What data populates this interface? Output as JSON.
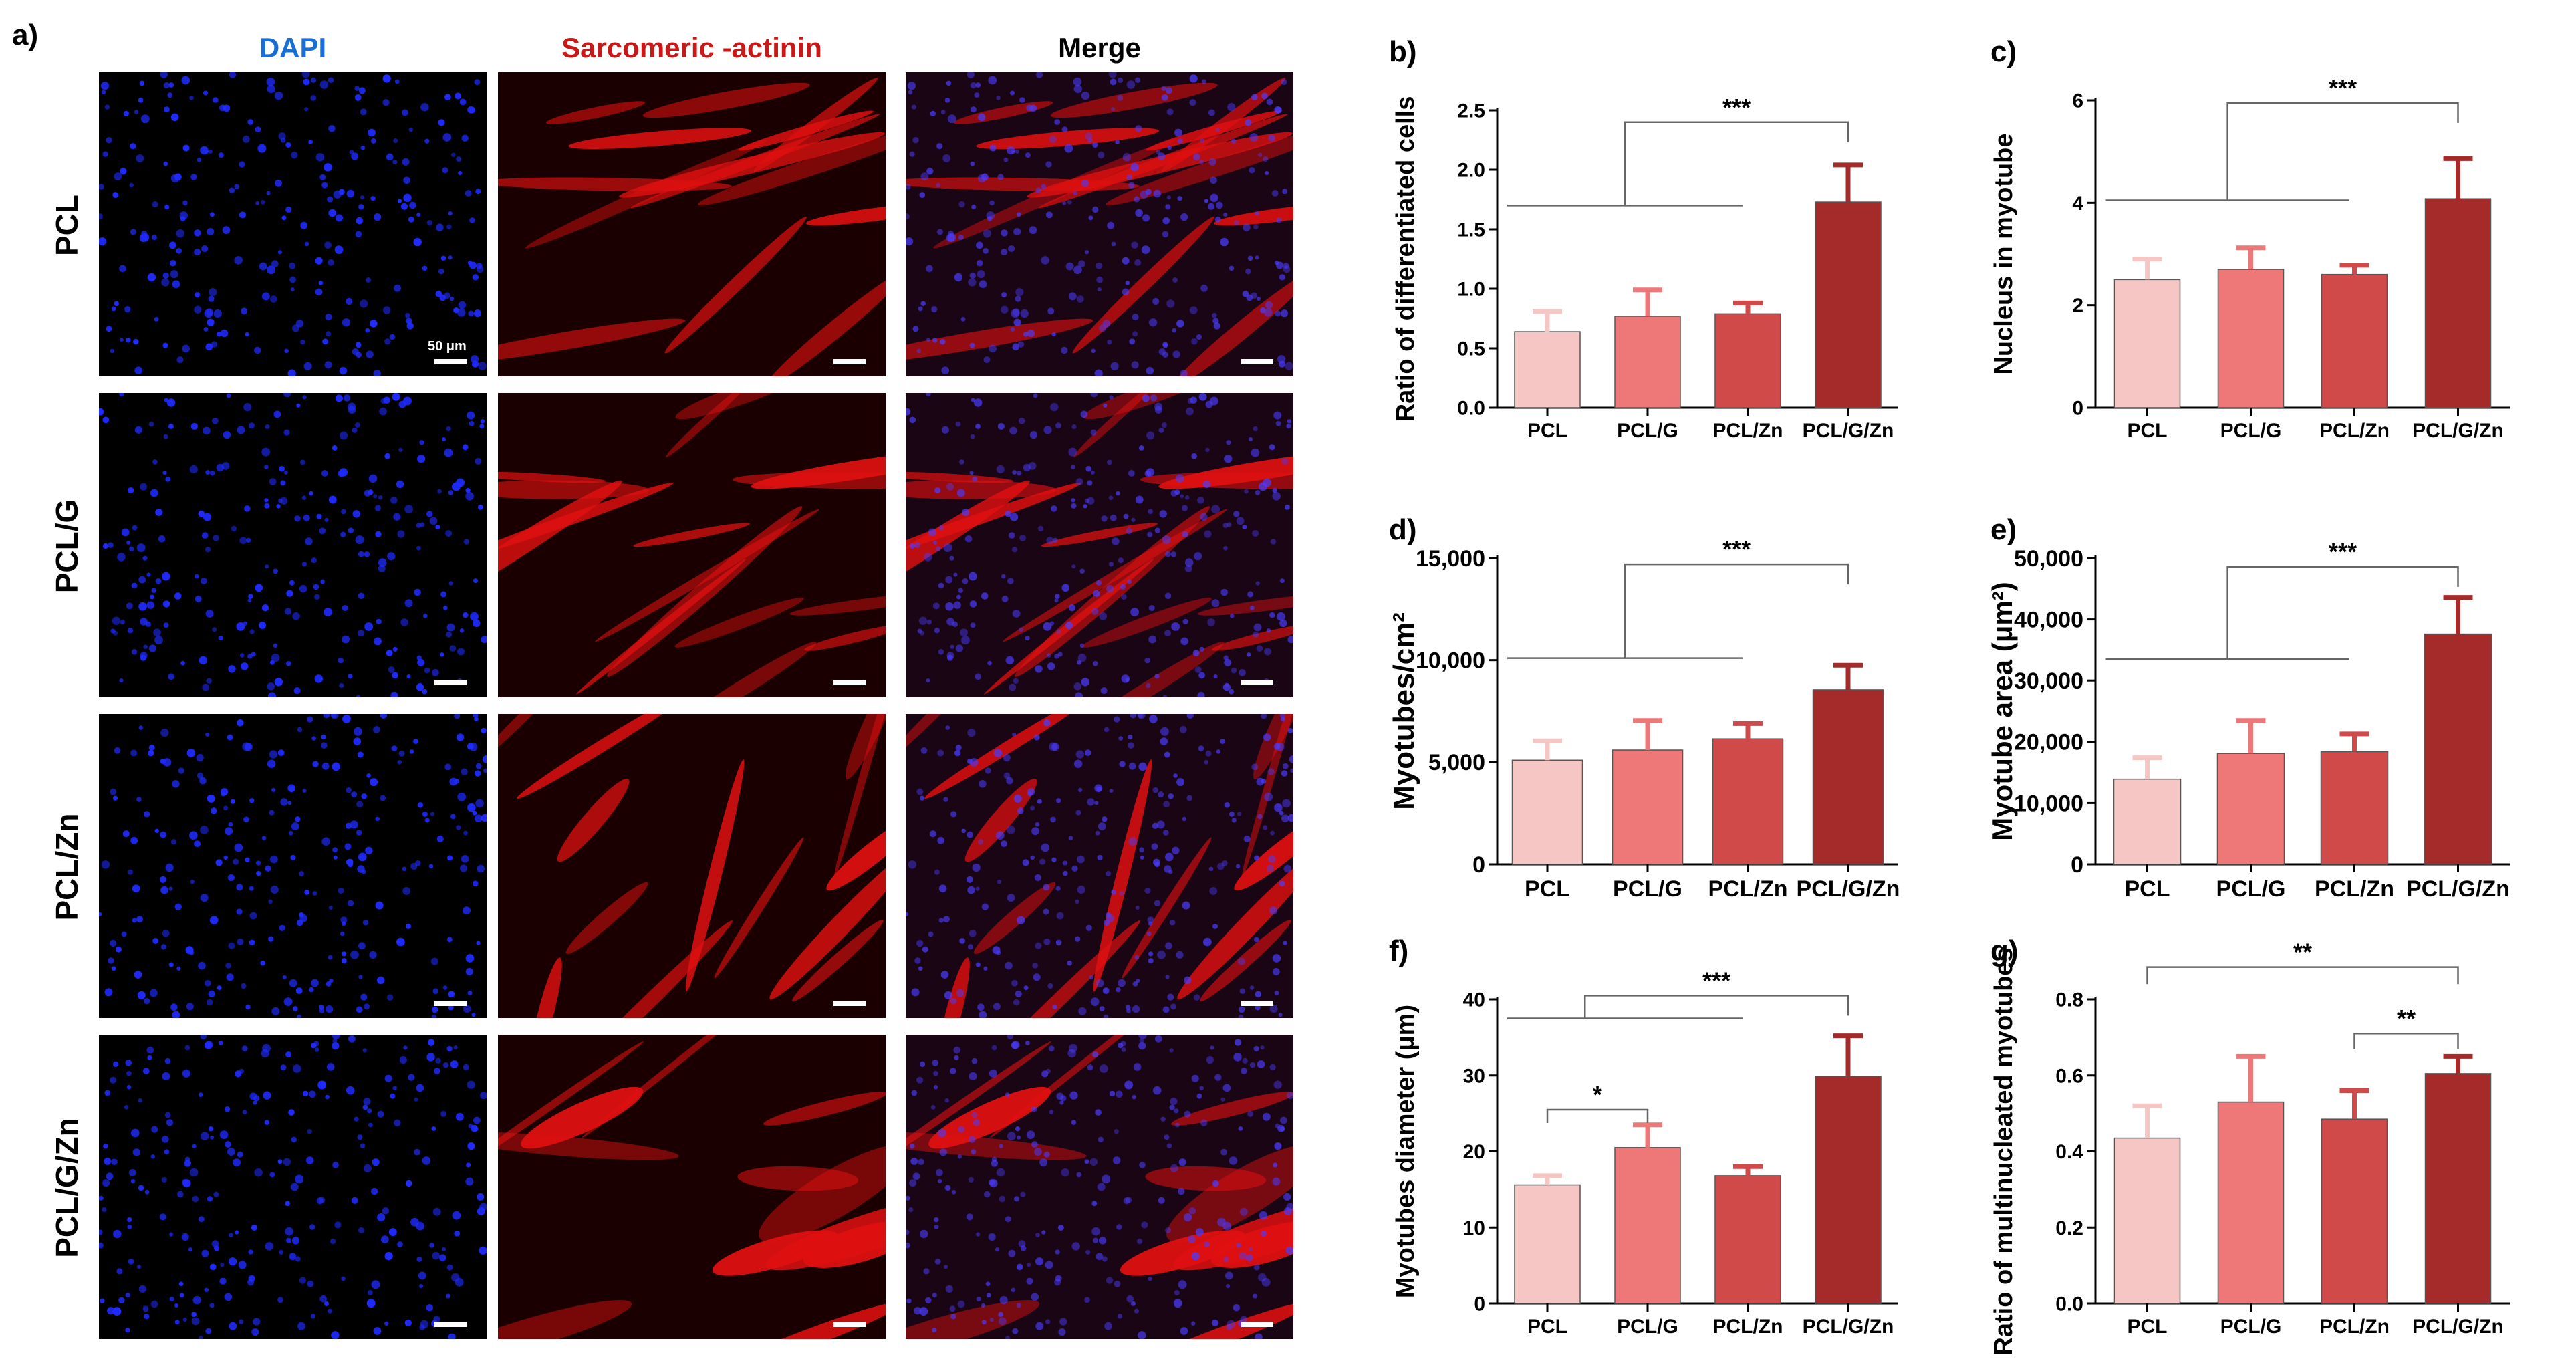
{
  "figure": {
    "panel_a_letter": "a)",
    "col_headers": [
      "DAPI",
      "Sarcomeric   -actinin",
      "Merge"
    ],
    "col_colors": [
      "#1a6fd6",
      "#c81818",
      "#000000"
    ],
    "row_labels": [
      "PCL",
      "PCL/G",
      "PCL/Zn",
      "PCL/G/Zn"
    ],
    "scale_label": "50 μm",
    "stain_colors": {
      "dapi": "#1f2bff",
      "actinin": "#e01010",
      "background": "#000000"
    }
  },
  "bar_colors": [
    "#f5c6c3",
    "#ee7777",
    "#d04a4a",
    "#a52a2a"
  ],
  "chart_data": [
    {
      "letter": "b)",
      "type": "bar",
      "categories": [
        "PCL",
        "PCL/G",
        "PCL/Zn",
        "PCL/G/Zn"
      ],
      "values": [
        0.64,
        0.77,
        0.79,
        1.73
      ],
      "errors": [
        0.17,
        0.22,
        0.09,
        0.31
      ],
      "ylabel": "Ratio of differentiated cells",
      "ylim": [
        0,
        2.5
      ],
      "yticks": [
        "0.0",
        "0.5",
        "1.0",
        "1.5",
        "2.0",
        "2.5"
      ],
      "sig_label": "***"
    },
    {
      "letter": "c)",
      "type": "bar",
      "categories": [
        "PCL",
        "PCL/G",
        "PCL/Zn",
        "PCL/G/Zn"
      ],
      "values": [
        2.5,
        2.7,
        2.6,
        4.08
      ],
      "errors": [
        0.4,
        0.42,
        0.18,
        0.78
      ],
      "ylabel": "Nucleus in myotube",
      "ylim": [
        0,
        6
      ],
      "yticks": [
        "0",
        "2",
        "4",
        "6"
      ],
      "sig_label": "***"
    },
    {
      "letter": "d)",
      "type": "bar",
      "categories": [
        "PCL",
        "PCL/G",
        "PCL/Zn",
        "PCL/G/Zn"
      ],
      "values": [
        5100,
        5600,
        6150,
        8550
      ],
      "errors": [
        950,
        1450,
        750,
        1200
      ],
      "ylabel": "Myotubes/cm²",
      "ylim": [
        0,
        15000
      ],
      "yticks": [
        "0",
        "5,000",
        "10,000",
        "15,000"
      ],
      "sig_label": "***"
    },
    {
      "letter": "e)",
      "type": "bar",
      "categories": [
        "PCL",
        "PCL/G",
        "PCL/Zn",
        "PCL/G/Zn"
      ],
      "values": [
        13900,
        18100,
        18400,
        37600
      ],
      "errors": [
        3500,
        5400,
        2900,
        6000
      ],
      "ylabel": "Myotube area (μm²)",
      "ylim": [
        0,
        50000
      ],
      "yticks": [
        "0",
        "10,000",
        "20,000",
        "30,000",
        "40,000",
        "50,000"
      ],
      "sig_label": "***"
    },
    {
      "letter": "f)",
      "type": "bar",
      "categories": [
        "PCL",
        "PCL/G",
        "PCL/Zn",
        "PCL/G/Zn"
      ],
      "values": [
        15.6,
        20.5,
        16.8,
        29.9
      ],
      "errors": [
        1.2,
        3.0,
        1.2,
        5.3
      ],
      "ylabel": "Myotubes diameter (μm)",
      "ylim": [
        0,
        40
      ],
      "yticks": [
        "0",
        "10",
        "20",
        "30",
        "40"
      ],
      "sig_label": "***",
      "sig_label_2": "*"
    },
    {
      "letter": "g)",
      "type": "bar",
      "categories": [
        "PCL",
        "PCL/G",
        "PCL/Zn",
        "PCL/G/Zn"
      ],
      "values": [
        0.435,
        0.53,
        0.485,
        0.605
      ],
      "errors": [
        0.085,
        0.12,
        0.075,
        0.045
      ],
      "ylabel": "Ratio of multinucleated myotubes",
      "ylim": [
        0,
        0.8
      ],
      "yticks": [
        "0.0",
        "0.2",
        "0.4",
        "0.6",
        "0.8"
      ],
      "sig_label": "**",
      "sig_label_2": "**"
    }
  ]
}
